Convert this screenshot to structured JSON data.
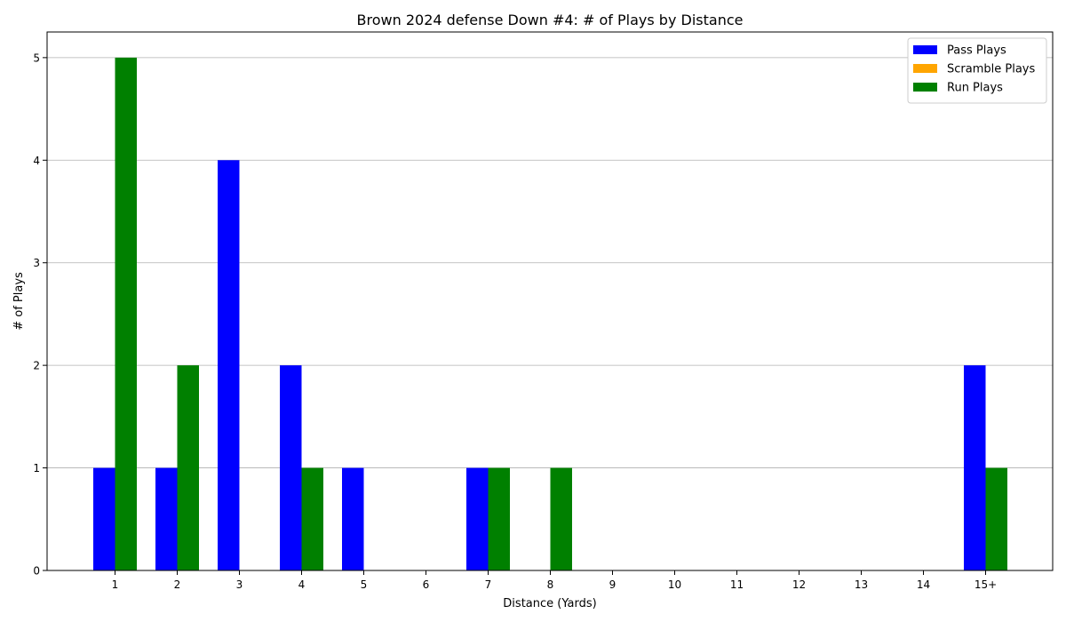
{
  "chart_data": {
    "type": "bar",
    "title": "Brown 2024 defense Down #4: # of Plays by Distance",
    "xlabel": "Distance (Yards)",
    "ylabel": "# of Plays",
    "categories": [
      "1",
      "2",
      "3",
      "4",
      "5",
      "6",
      "7",
      "8",
      "9",
      "10",
      "11",
      "12",
      "13",
      "14",
      "15+"
    ],
    "series": [
      {
        "name": "Pass Plays",
        "color": "#0000ff",
        "values": [
          1,
          1,
          4,
          2,
          1,
          0,
          1,
          0,
          0,
          0,
          0,
          0,
          0,
          0,
          2
        ]
      },
      {
        "name": "Scramble Plays",
        "color": "#ffa500",
        "values": [
          0,
          0,
          0,
          0,
          0,
          0,
          0,
          0,
          0,
          0,
          0,
          0,
          0,
          0,
          0
        ]
      },
      {
        "name": "Run Plays",
        "color": "#008000",
        "values": [
          5,
          2,
          0,
          1,
          0,
          0,
          1,
          1,
          0,
          0,
          0,
          0,
          0,
          0,
          1
        ]
      }
    ],
    "ylim": [
      0,
      5.25
    ],
    "yticks": [
      0,
      1,
      2,
      3,
      4,
      5
    ],
    "grid": "y",
    "legend_position": "top-right"
  }
}
